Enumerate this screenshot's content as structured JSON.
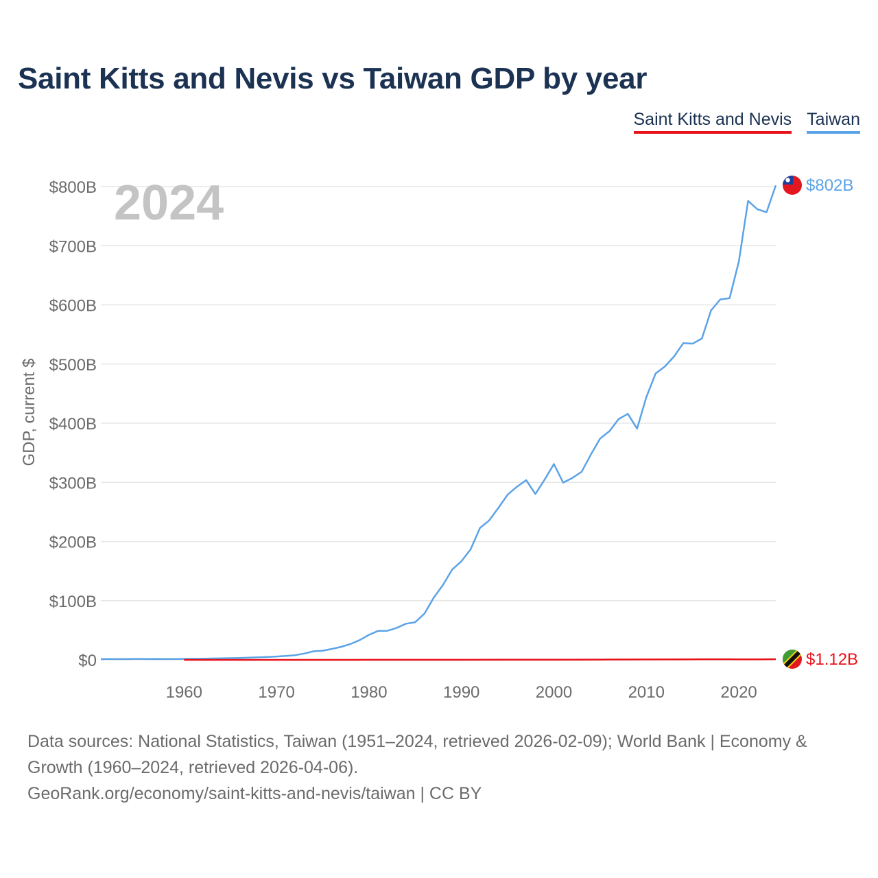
{
  "title": "Saint Kitts and Nevis vs Taiwan GDP by year",
  "legend": {
    "series_a": "Saint Kitts and Nevis",
    "series_b": "Taiwan"
  },
  "year_watermark": "2024",
  "end_labels": {
    "taiwan": "$802B",
    "saint_kitts": "$1.12B"
  },
  "flags": {
    "taiwan": "taiwan-flag-icon",
    "saint_kitts": "saint-kitts-flag-icon"
  },
  "colors": {
    "taiwan": "#5ba3e6",
    "saint_kitts": "#e8121a",
    "title": "#1b3252"
  },
  "footer": {
    "line1": "Data sources: National Statistics, Taiwan (1951–2024, retrieved 2026-02-09); World Bank | Economy &",
    "line2": "Growth (1960–2024, retrieved 2026-04-06).",
    "line3": "GeoRank.org/economy/saint-kitts-and-nevis/taiwan | CC BY"
  },
  "chart_data": {
    "type": "line",
    "title": "Saint Kitts and Nevis vs Taiwan GDP by year",
    "ylabel": "GDP, current $",
    "xlabel": "",
    "xlim": [
      1951,
      2024
    ],
    "ylim": [
      0,
      800
    ],
    "y_unit": "billions USD",
    "yticks": [
      0,
      100,
      200,
      300,
      400,
      500,
      600,
      700,
      800
    ],
    "ytick_labels": [
      "$0",
      "$100B",
      "$200B",
      "$300B",
      "$400B",
      "$500B",
      "$600B",
      "$700B",
      "$800B"
    ],
    "xticks": [
      1960,
      1970,
      1980,
      1990,
      2000,
      2010,
      2020
    ],
    "xtick_labels": [
      "1960",
      "1970",
      "1980",
      "1990",
      "2000",
      "2010",
      "2020"
    ],
    "grid": true,
    "series": [
      {
        "name": "Taiwan",
        "x": [
          1951,
          1952,
          1953,
          1954,
          1955,
          1956,
          1957,
          1958,
          1959,
          1960,
          1961,
          1962,
          1963,
          1964,
          1965,
          1966,
          1967,
          1968,
          1969,
          1970,
          1971,
          1972,
          1973,
          1974,
          1975,
          1976,
          1977,
          1978,
          1979,
          1980,
          1981,
          1982,
          1983,
          1984,
          1985,
          1986,
          1987,
          1988,
          1989,
          1990,
          1991,
          1992,
          1993,
          1994,
          1995,
          1996,
          1997,
          1998,
          1999,
          2000,
          2001,
          2002,
          2003,
          2004,
          2005,
          2006,
          2007,
          2008,
          2009,
          2010,
          2011,
          2012,
          2013,
          2014,
          2015,
          2016,
          2017,
          2018,
          2019,
          2020,
          2021,
          2022,
          2023,
          2024
        ],
        "values": [
          1.3,
          1.4,
          1.3,
          1.5,
          1.7,
          1.4,
          1.6,
          1.5,
          1.4,
          1.7,
          1.8,
          2.0,
          2.3,
          2.6,
          2.9,
          3.2,
          3.7,
          4.3,
          5.0,
          5.7,
          6.6,
          7.9,
          10.7,
          14.5,
          15.5,
          18.6,
          22.0,
          26.8,
          33.4,
          42.3,
          49.0,
          49.2,
          54.0,
          61.1,
          63.6,
          78.2,
          105.0,
          126.5,
          152.7,
          166.6,
          187.1,
          222.9,
          235.6,
          256.9,
          279.3,
          292.6,
          303.8,
          280.3,
          304.7,
          331.0,
          299.6,
          307.6,
          317.9,
          346.9,
          374.1,
          386.4,
          406.9,
          415.9,
          390.8,
          444.3,
          484.0,
          495.8,
          512.9,
          535.3,
          534.5,
          543.1,
          590.7,
          609.3,
          611.3,
          673.2,
          775.8,
          761.7,
          756.6,
          802.0
        ]
      },
      {
        "name": "Saint Kitts and Nevis",
        "x": [
          1960,
          1965,
          1970,
          1975,
          1980,
          1985,
          1990,
          1995,
          2000,
          2005,
          2010,
          2015,
          2018,
          2019,
          2020,
          2021,
          2022,
          2023,
          2024
        ],
        "values": [
          0.012,
          0.015,
          0.02,
          0.035,
          0.08,
          0.1,
          0.16,
          0.25,
          0.35,
          0.5,
          0.75,
          0.92,
          1.04,
          1.05,
          0.89,
          0.88,
          0.98,
          1.08,
          1.12
        ]
      }
    ]
  }
}
